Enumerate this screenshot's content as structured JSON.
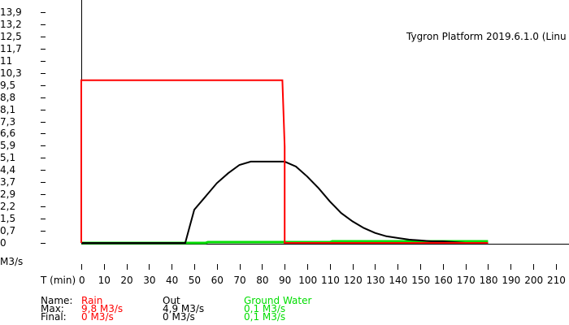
{
  "chart_data": {
    "type": "line",
    "title": "Tygron Platform 2019.6.1.0 (Linu",
    "xlabel": "T (min)",
    "ylabel": "M3/s",
    "xlim": [
      0,
      215
    ],
    "ylim": [
      0,
      13.9
    ],
    "y_ticks": [
      "13,9",
      "13,2",
      "12,5",
      "11,7",
      "11",
      "10,3",
      "9,5",
      "8,8",
      "8,1",
      "7,3",
      "6,6",
      "5,9",
      "5,1",
      "4,4",
      "3,7",
      "2,9",
      "2,2",
      "1,5",
      "0,7",
      "0"
    ],
    "x_ticks": [
      "0",
      "10",
      "20",
      "30",
      "40",
      "50",
      "60",
      "70",
      "80",
      "90",
      "100",
      "110",
      "120",
      "130",
      "140",
      "150",
      "160",
      "170",
      "180",
      "190",
      "200",
      "210"
    ],
    "grid": false,
    "series": [
      {
        "name": "Rain",
        "color": "#ff0000",
        "x": [
          0,
          0,
          89,
          90,
          90,
          110,
          180
        ],
        "y": [
          0,
          9.8,
          9.8,
          5.8,
          0,
          0,
          0
        ]
      },
      {
        "name": "Out",
        "color": "#000000",
        "x": [
          0,
          46,
          48,
          50,
          55,
          60,
          65,
          70,
          75,
          80,
          85,
          90,
          95,
          100,
          105,
          110,
          115,
          120,
          125,
          130,
          135,
          140,
          145,
          150,
          155,
          160,
          170,
          180
        ],
        "y": [
          0,
          0,
          1.0,
          2.0,
          2.8,
          3.6,
          4.2,
          4.7,
          4.9,
          4.9,
          4.9,
          4.9,
          4.6,
          4.0,
          3.3,
          2.5,
          1.8,
          1.3,
          0.9,
          0.6,
          0.4,
          0.3,
          0.2,
          0.15,
          0.1,
          0.1,
          0,
          0
        ]
      },
      {
        "name": "Ground Water",
        "color": "#00dd00",
        "x": [
          0,
          55,
          56,
          110,
          111,
          180
        ],
        "y": [
          0,
          0,
          0.05,
          0.05,
          0.1,
          0.1
        ]
      }
    ],
    "legend": {
      "rows": [
        "Name:",
        "Max:",
        "Final:"
      ],
      "entries": [
        {
          "name": "Rain",
          "max": "9,8 M3/s",
          "final": "0 M3/s"
        },
        {
          "name": "Out",
          "max": "4,9 M3/s",
          "final": "0 M3/s"
        },
        {
          "name": "Ground Water",
          "max": "0,1 M3/s",
          "final": "0,1 M3/s"
        }
      ]
    }
  },
  "labels": {
    "title": "Tygron Platform 2019.6.1.0 (Linu",
    "y_unit": "M3/s",
    "x_axis": "T (min)",
    "legend_name": "Name:",
    "legend_max": "Max:",
    "legend_final": "Final:"
  },
  "colors": {
    "rain": "#ff0000",
    "out": "#000000",
    "ground_water": "#00dd00"
  }
}
